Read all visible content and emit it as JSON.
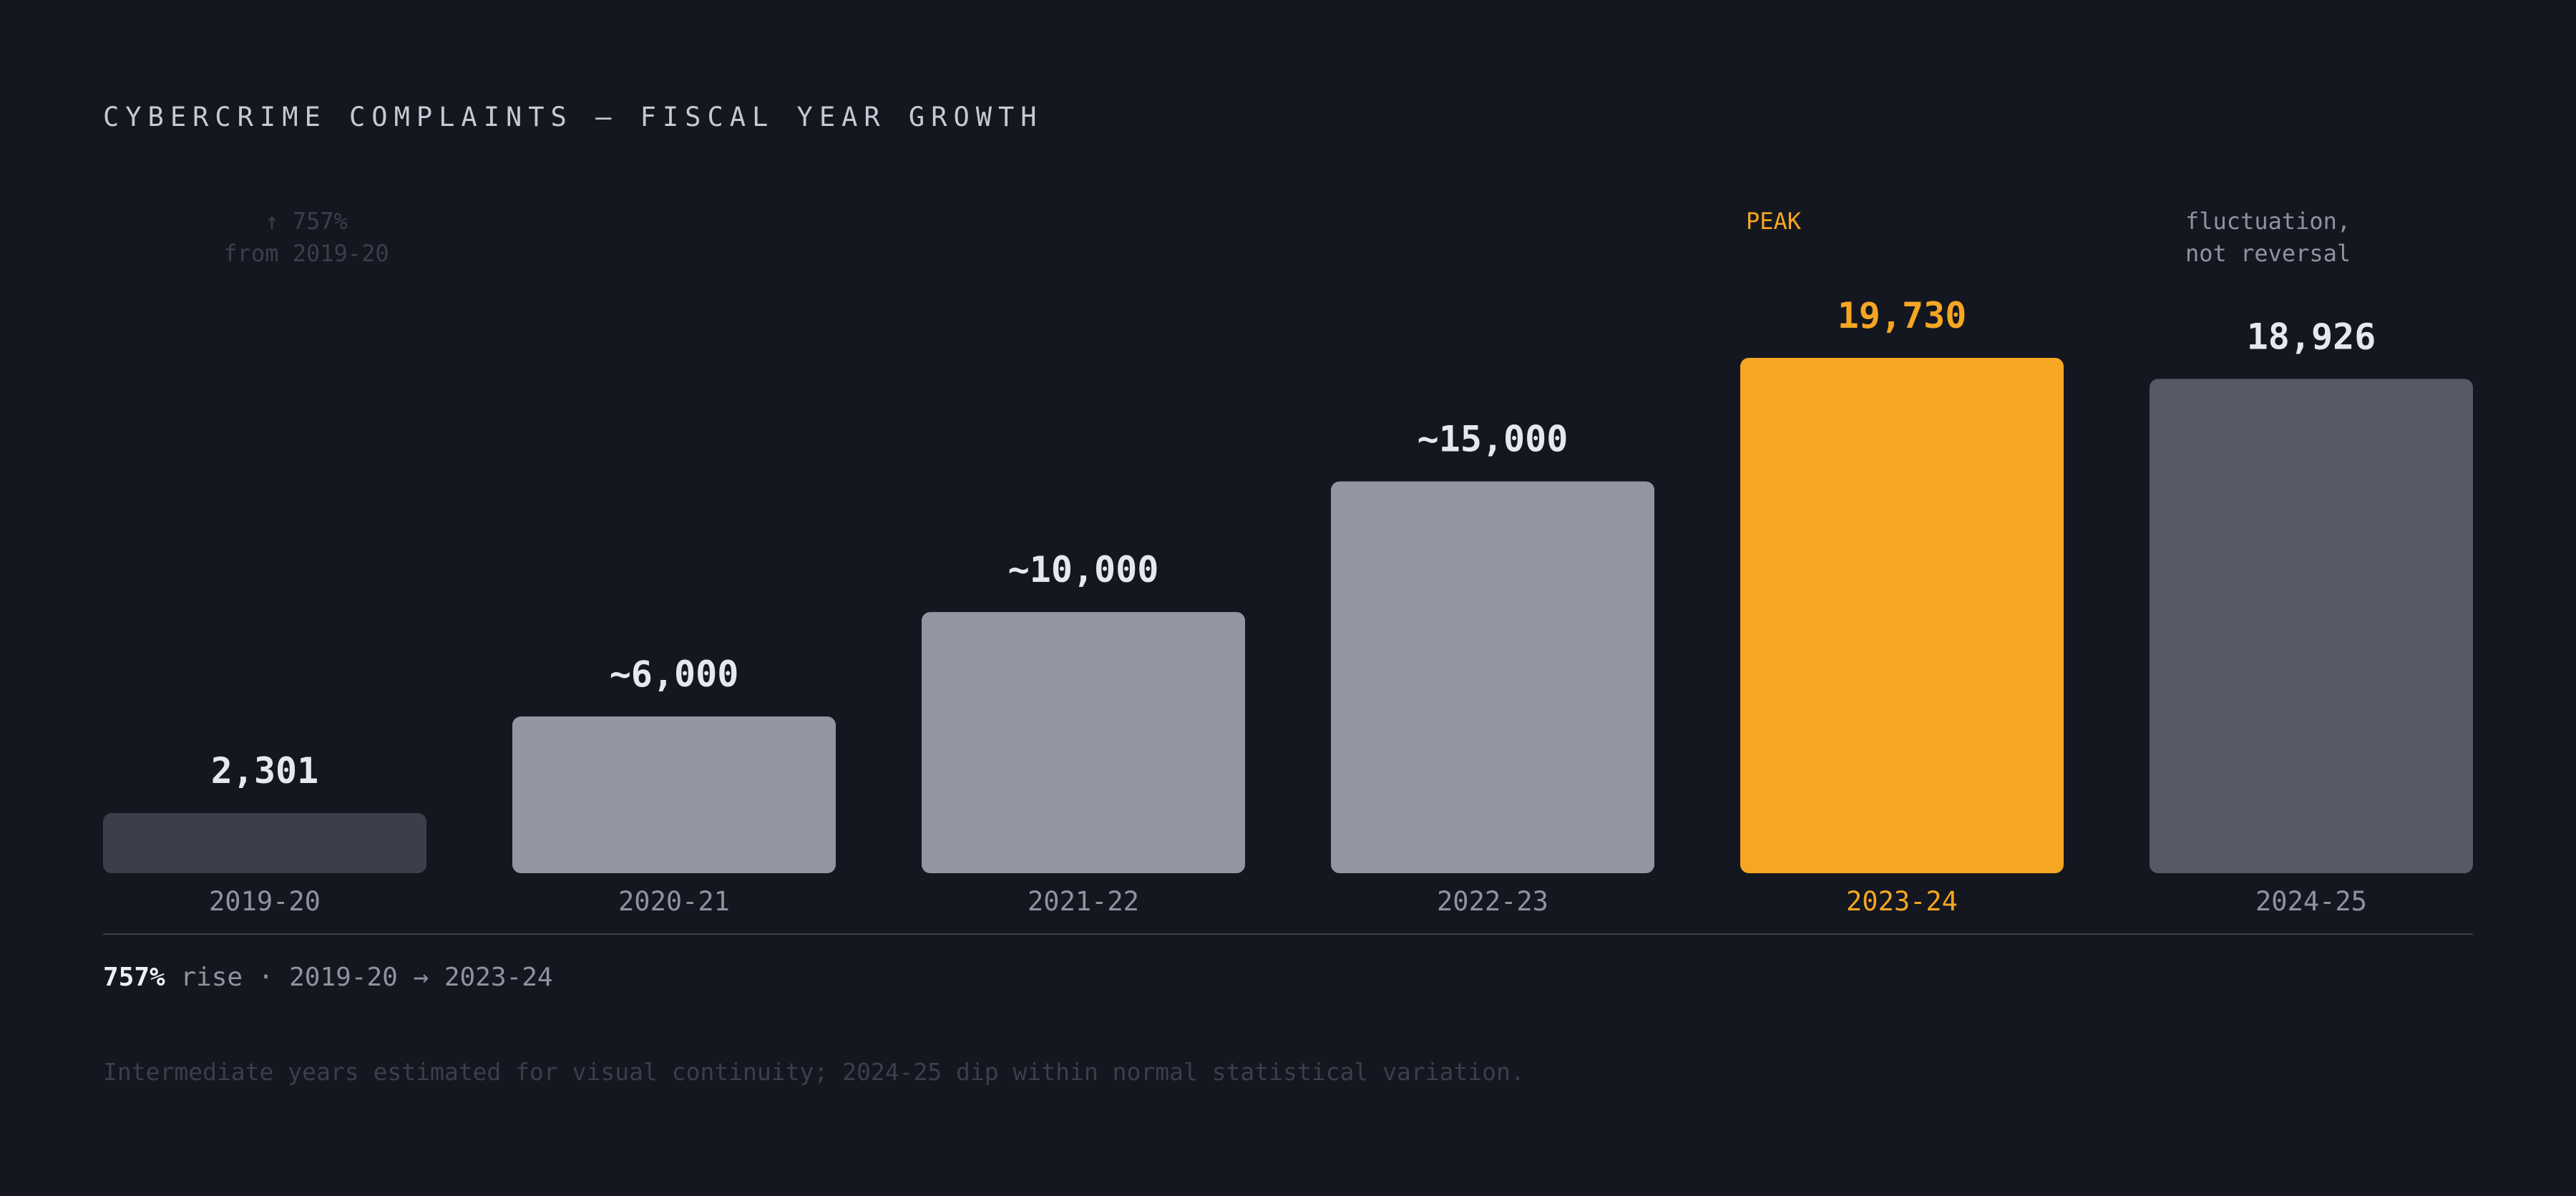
{
  "header": {
    "title": "CYBERCRIME COMPLAINTS — FISCAL YEAR GROWTH"
  },
  "colors": {
    "background": "#14171f",
    "bar_first": "#3c3f4b",
    "bar_default": "#9296a2",
    "bar_peak": "#f5a623",
    "bar_last": "#575a66",
    "label_default": "#e6e8ee",
    "label_peak": "#f5a623",
    "axis": "#3a3e4a"
  },
  "chart_data": {
    "type": "bar",
    "title": "CYBERCRIME COMPLAINTS — FISCAL YEAR GROWTH",
    "xlabel": "",
    "ylabel": "",
    "ylim": [
      0,
      21000
    ],
    "grid": false,
    "categories": [
      "2019-20",
      "2020-21",
      "2021-22",
      "2022-23",
      "2023-24",
      "2024-25"
    ],
    "values": [
      2301,
      6000,
      10000,
      15000,
      19730,
      18926
    ],
    "value_labels": [
      "2,301",
      "~6,000",
      "~10,000",
      "~15,000",
      "19,730",
      "18,926"
    ],
    "highlight_index": 4,
    "annotations": [
      {
        "category": "2019-20",
        "lines": [
          "↑ 757%",
          "from 2019-20"
        ]
      },
      {
        "category": "2023-24",
        "lines": [
          "PEAK"
        ]
      },
      {
        "category": "2024-25",
        "lines": [
          "fluctuation,",
          "not reversal"
        ]
      }
    ]
  },
  "summary": {
    "pct": "757%",
    "rest": " rise · 2019-20 → 2023-24"
  },
  "footnote": "Intermediate years estimated for visual continuity; 2024-25 dip within normal statistical variation."
}
